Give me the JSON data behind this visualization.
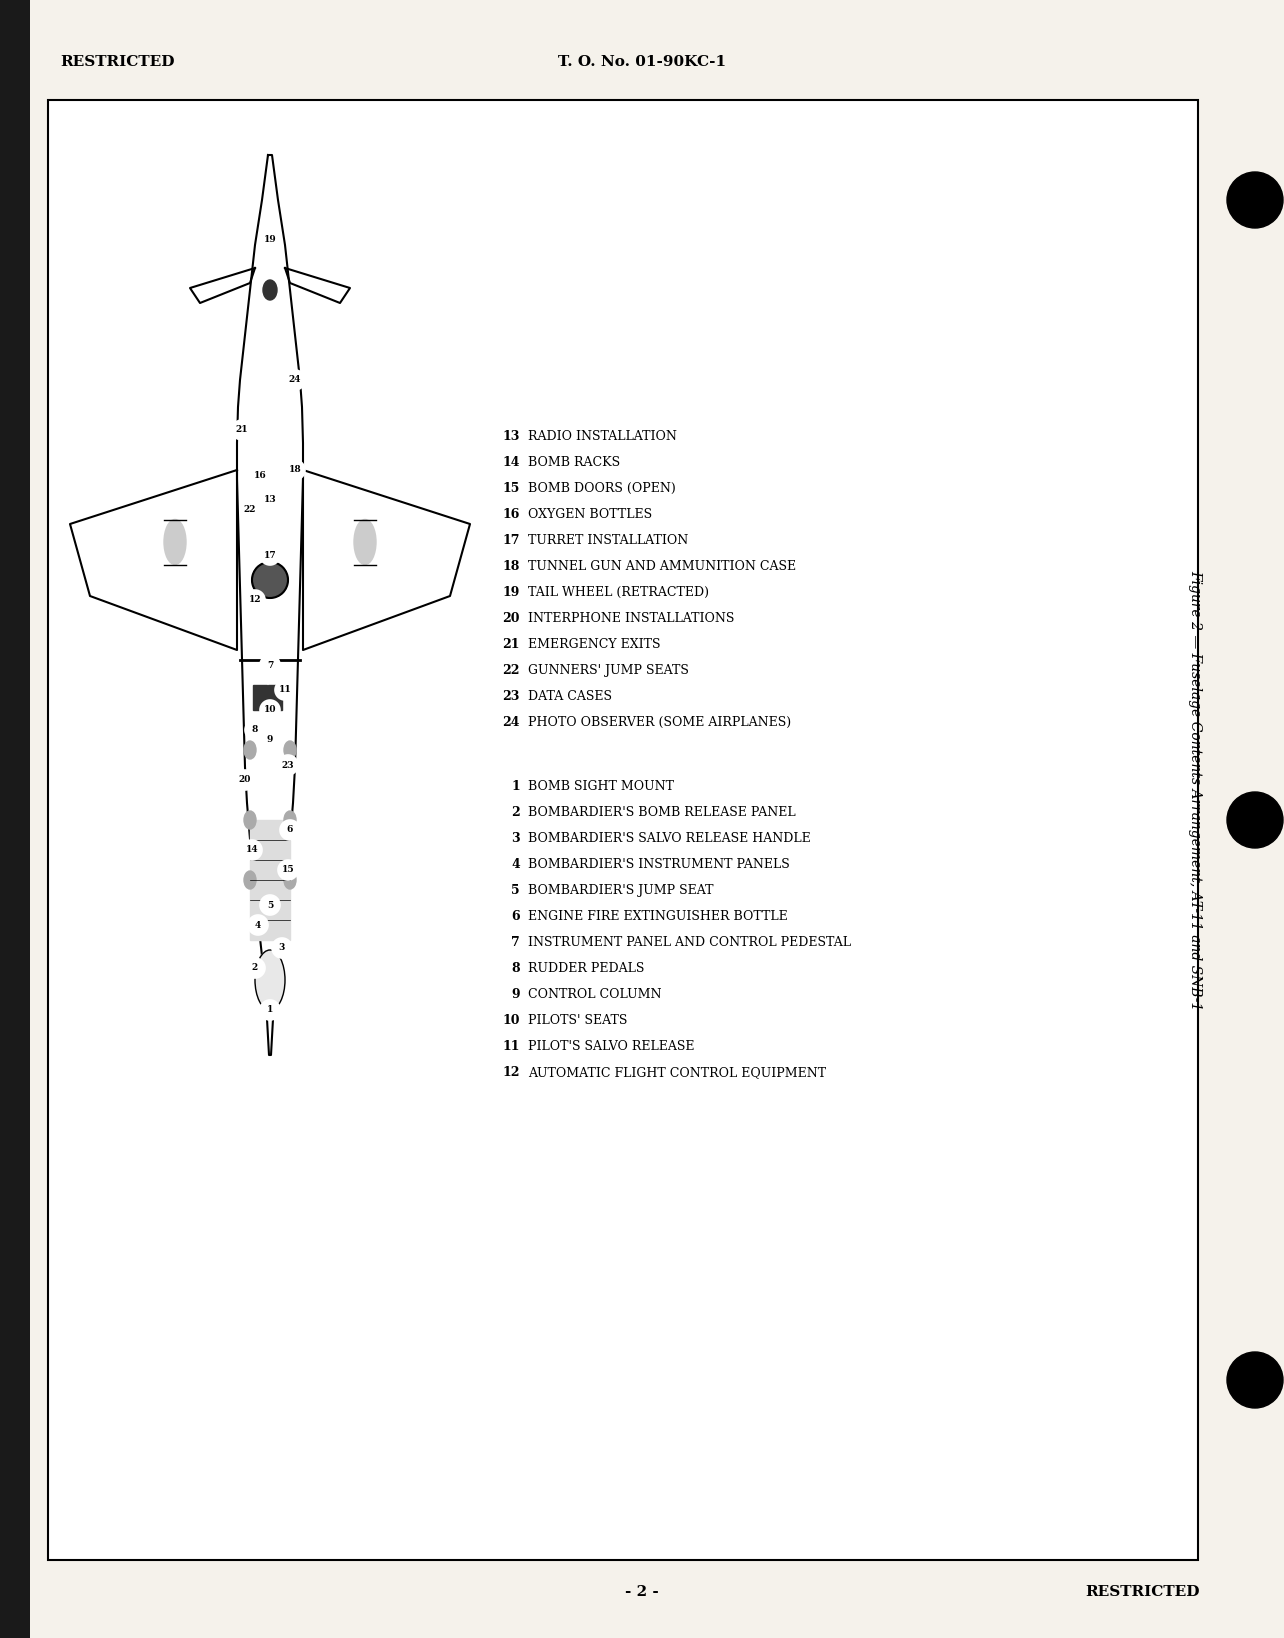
{
  "page_background": "#f5f2eb",
  "border_color": "#000000",
  "text_color": "#000000",
  "header_left": "RESTRICTED",
  "header_center": "T. O. No. 01-90KC-1",
  "footer_center": "- 2 -",
  "footer_right": "RESTRICTED",
  "figure_caption": "Figure 2 — Fuselage Contents Arrangement, AT-11 and SNB-1",
  "legend_left": [
    [
      "1",
      "BOMB SIGHT MOUNT"
    ],
    [
      "2",
      "BOMBARDIER'S BOMB RELEASE PANEL"
    ],
    [
      "3",
      "BOMBARDIER'S SALVO RELEASE HANDLE"
    ],
    [
      "4",
      "BOMBARDIER'S INSTRUMENT PANELS"
    ],
    [
      "5",
      "BOMBARDIER'S JUMP SEAT"
    ],
    [
      "6",
      "ENGINE FIRE EXTINGUISHER BOTTLE"
    ],
    [
      "7",
      "INSTRUMENT PANEL AND CONTROL PEDESTAL"
    ],
    [
      "8",
      "RUDDER PEDALS"
    ],
    [
      "9",
      "CONTROL COLUMN"
    ],
    [
      "10",
      "PILOTS' SEATS"
    ],
    [
      "11",
      "PILOT'S SALVO RELEASE"
    ],
    [
      "12",
      "AUTOMATIC FLIGHT CONTROL EQUIPMENT"
    ]
  ],
  "legend_right": [
    [
      "13",
      "RADIO INSTALLATION"
    ],
    [
      "14",
      "BOMB RACKS"
    ],
    [
      "15",
      "BOMB DOORS (OPEN)"
    ],
    [
      "16",
      "OXYGEN BOTTLES"
    ],
    [
      "17",
      "TURRET INSTALLATION"
    ],
    [
      "18",
      "TUNNEL GUN AND AMMUNITION CASE"
    ],
    [
      "19",
      "TAIL WHEEL (RETRACTED)"
    ],
    [
      "20",
      "INTERPHONE INSTALLATIONS"
    ],
    [
      "21",
      "EMERGENCY EXITS"
    ],
    [
      "22",
      "GUNNERS' JUMP SEATS"
    ],
    [
      "23",
      "DATA CASES"
    ],
    [
      "24",
      "PHOTO OBSERVER (SOME AIRPLANES)"
    ]
  ]
}
